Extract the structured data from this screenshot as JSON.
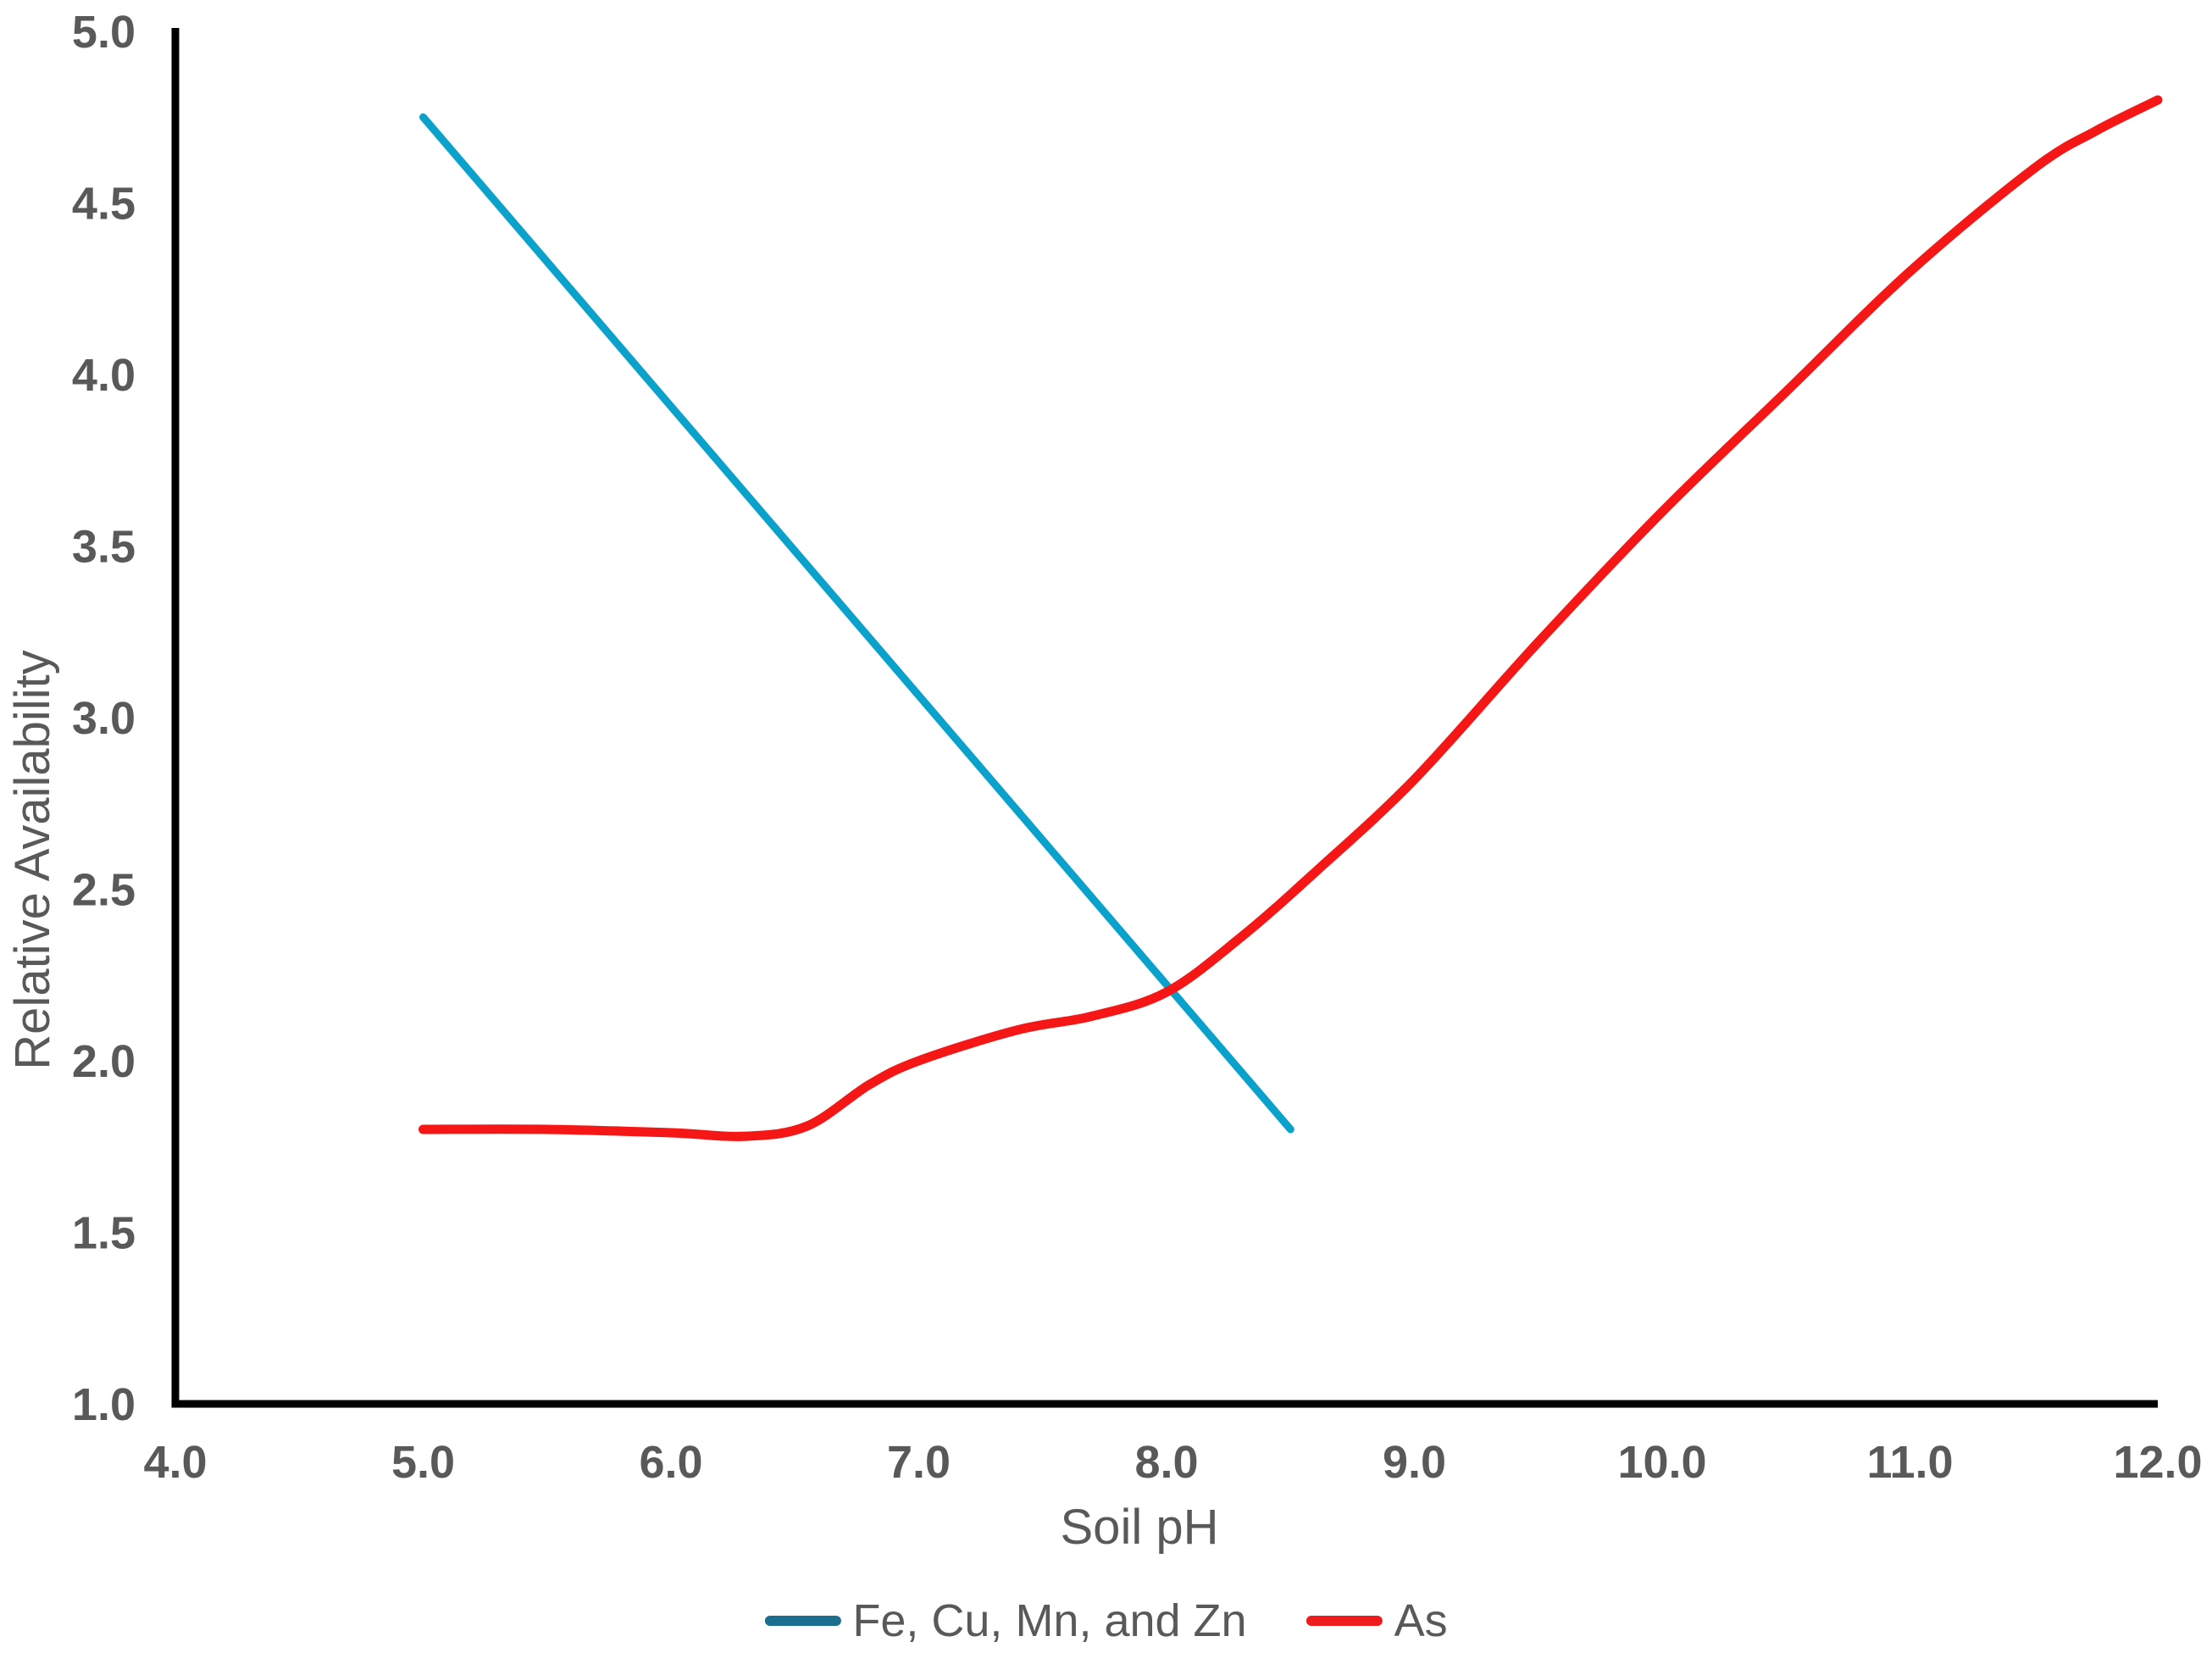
{
  "chart_data": {
    "type": "line",
    "title": "",
    "xlabel": "Soil pH",
    "ylabel": "Relative Availability",
    "xlim": [
      4.0,
      12.0
    ],
    "ylim": [
      1.0,
      5.0
    ],
    "x_ticks": [
      4.0,
      5.0,
      6.0,
      7.0,
      8.0,
      9.0,
      10.0,
      11.0,
      12.0
    ],
    "x_tick_labels": [
      "4.0",
      "5.0",
      "6.0",
      "7.0",
      "8.0",
      "9.0",
      "10.0",
      "11.0",
      "12.0"
    ],
    "y_ticks": [
      1.0,
      1.5,
      2.0,
      2.5,
      3.0,
      3.5,
      4.0,
      4.5,
      5.0
    ],
    "y_tick_labels": [
      "1.0",
      "1.5",
      "2.0",
      "2.5",
      "3.0",
      "3.5",
      "4.0",
      "4.5",
      "5.0"
    ],
    "grid": false,
    "legend_position": "bottom-center",
    "series": [
      {
        "name": "Fe, Cu, Mn, and Zn",
        "color": "#0aa2cb",
        "legend_color": "#1b6e8e",
        "smooth": false,
        "points": [
          [
            5.0,
            4.75
          ],
          [
            8.5,
            1.8
          ]
        ]
      },
      {
        "name": "As",
        "color": "#f51616",
        "legend_color": "#ee1c1c",
        "smooth": true,
        "points": [
          [
            5.0,
            1.8
          ],
          [
            5.5,
            1.8
          ],
          [
            6.0,
            1.79
          ],
          [
            6.3,
            1.78
          ],
          [
            6.55,
            1.81
          ],
          [
            6.8,
            1.93
          ],
          [
            7.0,
            2.0
          ],
          [
            7.4,
            2.09
          ],
          [
            7.7,
            2.13
          ],
          [
            8.0,
            2.2
          ],
          [
            8.3,
            2.36
          ],
          [
            8.6,
            2.55
          ],
          [
            9.0,
            2.82
          ],
          [
            9.5,
            3.22
          ],
          [
            10.0,
            3.6
          ],
          [
            10.5,
            3.95
          ],
          [
            11.0,
            4.3
          ],
          [
            11.5,
            4.6
          ],
          [
            11.75,
            4.71
          ],
          [
            12.0,
            4.8
          ]
        ]
      }
    ]
  },
  "colors": {
    "axis": "#000000",
    "text": "#595959",
    "background": "#ffffff"
  }
}
